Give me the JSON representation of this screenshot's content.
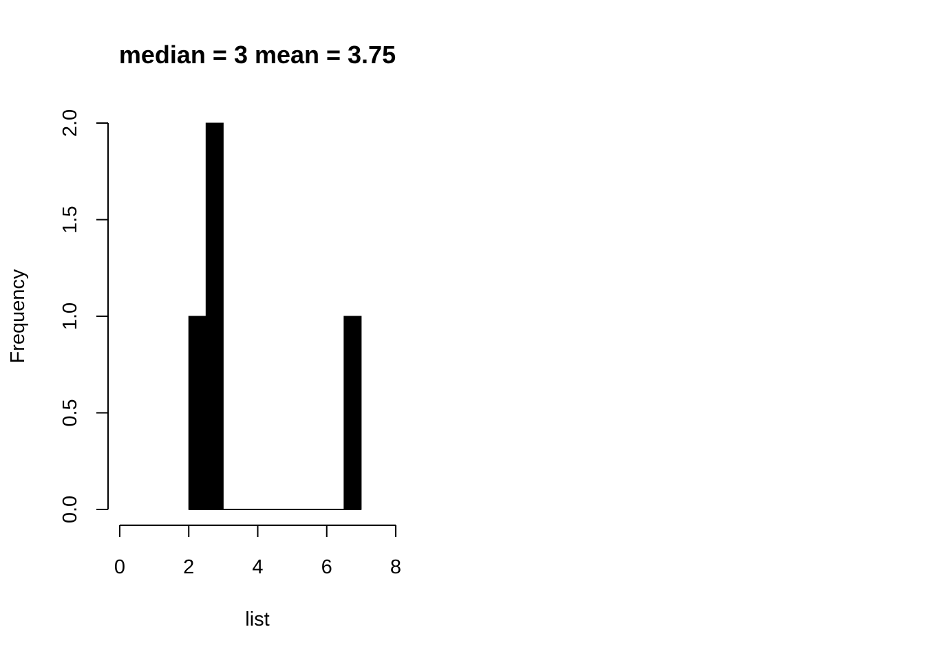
{
  "chart_data": {
    "type": "bar",
    "title": "median = 3 mean = 3.75",
    "xlabel": "list",
    "ylabel": "Frequency",
    "bins": [
      {
        "x0": 2.0,
        "x1": 2.5,
        "count": 1
      },
      {
        "x0": 2.5,
        "x1": 3.0,
        "count": 2
      },
      {
        "x0": 3.0,
        "x1": 3.5,
        "count": 0
      },
      {
        "x0": 3.5,
        "x1": 4.0,
        "count": 0
      },
      {
        "x0": 4.0,
        "x1": 4.5,
        "count": 0
      },
      {
        "x0": 4.5,
        "x1": 5.0,
        "count": 0
      },
      {
        "x0": 5.0,
        "x1": 5.5,
        "count": 0
      },
      {
        "x0": 5.5,
        "x1": 6.0,
        "count": 0
      },
      {
        "x0": 6.0,
        "x1": 6.5,
        "count": 0
      },
      {
        "x0": 6.5,
        "x1": 7.0,
        "count": 1
      }
    ],
    "xlim": [
      0,
      8
    ],
    "ylim": [
      0,
      2
    ],
    "x_ticks": [
      0,
      2,
      4,
      6,
      8
    ],
    "x_tick_labels": [
      "0",
      "2",
      "4",
      "6",
      "8"
    ],
    "y_ticks": [
      0,
      0.5,
      1,
      1.5,
      2
    ],
    "y_tick_labels": [
      "0.0",
      "0.5",
      "1.0",
      "1.5",
      "2.0"
    ],
    "bar_color": "#000000",
    "grid": false,
    "legend": "none"
  }
}
